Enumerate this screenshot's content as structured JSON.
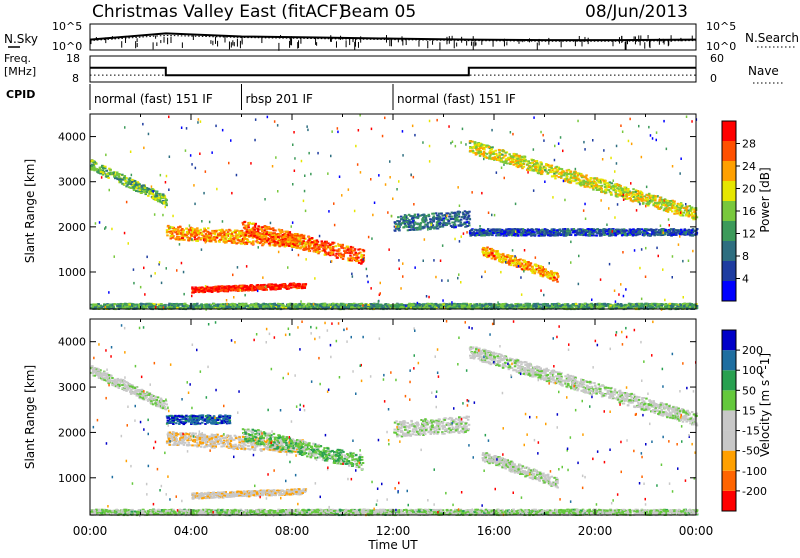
{
  "header": {
    "title": "Christmas Valley East (fitACF)",
    "beam": "Beam 05",
    "date": "08/Jun/2013"
  },
  "left_labels": {
    "nsky": "N.Sky",
    "freq_line1": "Freq.",
    "freq_line2": "[MHz]",
    "cpid": "CPID"
  },
  "right_labels": {
    "nsearch": "N.Search",
    "nave": "Nave"
  },
  "noise_panel": {
    "ticks_left": [
      "10^5",
      "10^0"
    ],
    "ticks_right": [
      "10^5",
      "10^0"
    ]
  },
  "freq_panel": {
    "ticks_left": [
      "18",
      "8"
    ],
    "ticks_right": [
      "60",
      "0"
    ]
  },
  "cpid_segments": [
    {
      "label": "normal (fast) 151 IF",
      "start": 0,
      "end": 6
    },
    {
      "label": "rbsp 201 IF",
      "start": 6,
      "end": 12
    },
    {
      "label": "normal (fast) 151 IF",
      "start": 12,
      "end": 24
    }
  ],
  "x_axis": {
    "label": "Time UT",
    "ticks": [
      "00:00",
      "04:00",
      "08:00",
      "12:00",
      "16:00",
      "20:00",
      "00:00"
    ]
  },
  "power_panel": {
    "ylabel": "Slant Range [km]",
    "yticks": [
      "4000",
      "3000",
      "2000",
      "1000"
    ],
    "colorbar_label": "Power [dB]",
    "colorbar_ticks": [
      "28",
      "24",
      "20",
      "16",
      "12",
      "8",
      "4"
    ],
    "colors": [
      "#0000ff",
      "#1e3ca0",
      "#2e6e80",
      "#3c9a5a",
      "#78c83c",
      "#e6e600",
      "#ffa000",
      "#ff5000",
      "#ff0000"
    ]
  },
  "velocity_panel": {
    "ylabel": "Slant Range [km]",
    "yticks": [
      "4000",
      "3000",
      "2000",
      "1000"
    ],
    "colorbar_label": "Velocity [m s^-1]",
    "colorbar_ticks": [
      "200",
      "100",
      "50",
      "15",
      "-15",
      "-50",
      "-100",
      "-200"
    ],
    "colors": [
      "#0000c8",
      "#1e6ea0",
      "#28a050",
      "#64c83c",
      "#c8c8c8",
      "#c8c8c8",
      "#ffa000",
      "#ff6400",
      "#ff0000"
    ]
  },
  "chart_data": [
    {
      "type": "line",
      "title": "N.Sky / N.Search",
      "x_range_hours": [
        0,
        24
      ],
      "series": [
        {
          "name": "N.Sky",
          "x": [
            0,
            3,
            6,
            9,
            12,
            15,
            18,
            21,
            24
          ],
          "values": [
            2.0,
            3.2,
            2.6,
            2.4,
            2.2,
            2.0,
            1.9,
            1.9,
            2.0
          ]
        },
        {
          "name": "N.Search",
          "x": [
            0,
            3,
            6,
            9,
            12,
            15,
            18,
            21,
            24
          ],
          "values": [
            1.8,
            2.8,
            2.4,
            2.2,
            2.0,
            1.8,
            1.7,
            1.7,
            1.8
          ]
        }
      ]
    },
    {
      "type": "line",
      "title": "Freq. [MHz] / Nave",
      "x_range_hours": [
        0,
        24
      ],
      "series": [
        {
          "name": "Freq.",
          "x": [
            0,
            3,
            3,
            15,
            15,
            24
          ],
          "values": [
            13.5,
            13.5,
            10.6,
            10.6,
            13.5,
            13.5
          ]
        },
        {
          "name": "Nave",
          "x": [
            0,
            24
          ],
          "values": [
            16,
            16
          ]
        }
      ]
    },
    {
      "type": "heatmap",
      "title": "Power [dB]",
      "xlabel": "Time UT",
      "ylabel": "Slant Range [km]",
      "xlim_hours": [
        0,
        24
      ],
      "ylim_km": [
        180,
        4500
      ],
      "zlim": [
        0,
        30
      ],
      "structures": [
        {
          "t0": 0.0,
          "t1": 3.0,
          "r0": 3400,
          "r1": 2600,
          "thickness": 220,
          "value": 14
        },
        {
          "t0": 3.0,
          "t1": 8.5,
          "r0": 1900,
          "r1": 1700,
          "thickness": 300,
          "value": 22
        },
        {
          "t0": 6.0,
          "t1": 10.8,
          "r0": 2000,
          "r1": 1350,
          "thickness": 320,
          "value": 24
        },
        {
          "t0": 4.0,
          "t1": 8.5,
          "r0": 620,
          "r1": 720,
          "thickness": 120,
          "value": 28
        },
        {
          "t0": 15.0,
          "t1": 24.0,
          "r0": 3800,
          "r1": 2300,
          "thickness": 280,
          "value": 18
        },
        {
          "t0": 12.0,
          "t1": 15.0,
          "r0": 2100,
          "r1": 2200,
          "thickness": 350,
          "value": 8
        },
        {
          "t0": 15.5,
          "t1": 18.5,
          "r0": 1500,
          "r1": 900,
          "thickness": 220,
          "value": 22
        },
        {
          "t0": 15.0,
          "t1": 24.0,
          "r0": 1900,
          "r1": 1900,
          "thickness": 150,
          "value": 6
        },
        {
          "t0": 0.0,
          "t1": 24.0,
          "r0": 260,
          "r1": 260,
          "thickness": 120,
          "value": 12
        }
      ]
    },
    {
      "type": "heatmap",
      "title": "Velocity [m s^-1]",
      "xlabel": "Time UT",
      "ylabel": "Slant Range [km]",
      "xlim_hours": [
        0,
        24
      ],
      "ylim_km": [
        180,
        4500
      ],
      "zlim": [
        -250,
        250
      ],
      "structures": [
        {
          "t0": 0.0,
          "t1": 3.0,
          "r0": 3400,
          "r1": 2600,
          "thickness": 220,
          "value": 0
        },
        {
          "t0": 3.0,
          "t1": 8.5,
          "r0": 1900,
          "r1": 1700,
          "thickness": 300,
          "value": -60
        },
        {
          "t0": 6.0,
          "t1": 10.8,
          "r0": 2000,
          "r1": 1350,
          "thickness": 320,
          "value": 60
        },
        {
          "t0": 4.0,
          "t1": 8.5,
          "r0": 620,
          "r1": 720,
          "thickness": 120,
          "value": -60
        },
        {
          "t0": 15.0,
          "t1": 24.0,
          "r0": 3800,
          "r1": 2300,
          "thickness": 280,
          "value": 0
        },
        {
          "t0": 12.0,
          "t1": 15.0,
          "r0": 2100,
          "r1": 2200,
          "thickness": 350,
          "value": 0
        },
        {
          "t0": 15.5,
          "t1": 18.5,
          "r0": 1500,
          "r1": 900,
          "thickness": 220,
          "value": 0
        },
        {
          "t0": 3.0,
          "t1": 5.5,
          "r0": 2300,
          "r1": 2300,
          "thickness": 200,
          "value": 180
        },
        {
          "t0": 0.0,
          "t1": 24.0,
          "r0": 260,
          "r1": 260,
          "thickness": 120,
          "value": 30
        }
      ]
    }
  ]
}
